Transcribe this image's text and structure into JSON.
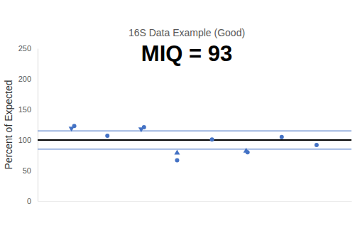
{
  "chart_data": {
    "type": "scatter",
    "title": "16S Data Example (Good)",
    "subtitle": "MIQ = 93",
    "y_label": "Percent of Expected",
    "xlim": [
      0,
      9
    ],
    "ylim": [
      0,
      250
    ],
    "yticks": [
      0,
      50,
      100,
      150,
      200,
      250
    ],
    "tick_labels": "y",
    "grid": false,
    "series": [
      {
        "marker": "circle",
        "color": "#4472c4",
        "x": [
          1.05,
          2,
          3.05,
          4,
          5,
          6.02,
          7,
          8
        ],
        "values": [
          123,
          107,
          121,
          67,
          101,
          80,
          105,
          92
        ]
      },
      {
        "marker": "triangle-down",
        "color": "#4472c4",
        "x": [
          0.97,
          2.97
        ],
        "values": [
          119,
          118
        ]
      },
      {
        "marker": "triangle-up",
        "color": "#4472c4",
        "x": [
          4,
          5.98
        ],
        "values": [
          79,
          82
        ]
      }
    ],
    "hlines": [
      {
        "value": 100,
        "color": "#000000"
      },
      {
        "value": 115,
        "color": "#4472c4"
      },
      {
        "value": 85,
        "color": "#4472c4"
      }
    ]
  }
}
